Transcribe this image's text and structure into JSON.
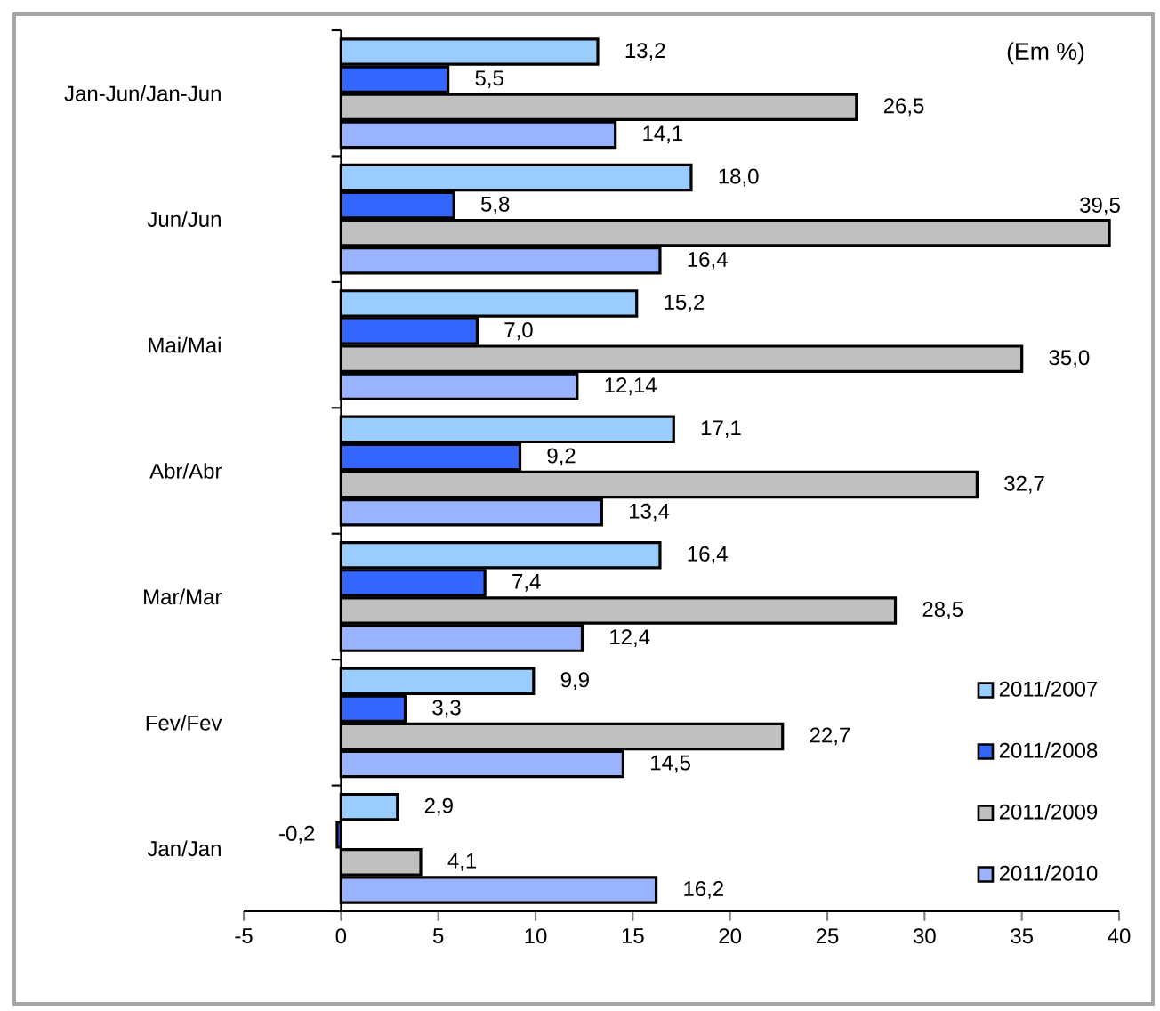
{
  "chart_data": {
    "type": "bar",
    "orientation": "horizontal",
    "categories": [
      "Jan-Jun/Jan-Jun",
      "Jun/Jun",
      "Mai/Mai",
      "Abr/Abr",
      "Mar/Mar",
      "Fev/Fev",
      "Jan/Jan"
    ],
    "series": [
      {
        "name": "2011/2007",
        "color": "#99ccff",
        "values": [
          13.2,
          18.0,
          15.2,
          17.1,
          16.4,
          9.9,
          2.9
        ],
        "value_labels": [
          "13,2",
          "18,0",
          "15,2",
          "17,1",
          "16,4",
          "9,9",
          "2,9"
        ]
      },
      {
        "name": "2011/2008",
        "color": "#3366ff",
        "values": [
          5.5,
          5.8,
          7.0,
          9.2,
          7.4,
          3.3,
          -0.2
        ],
        "value_labels": [
          "5,5",
          "5,8",
          "7,0",
          "9,2",
          "7,4",
          "3,3",
          "-0,2"
        ]
      },
      {
        "name": "2011/2009",
        "color": "#c0c0c0",
        "values": [
          26.5,
          39.5,
          35.0,
          32.7,
          28.5,
          22.7,
          4.1
        ],
        "value_labels": [
          "26,5",
          "39,5",
          "35,0",
          "32,7",
          "28,5",
          "22,7",
          "4,1"
        ]
      },
      {
        "name": "2011/2010",
        "color": "#99b3ff",
        "values": [
          14.1,
          16.4,
          12.14,
          13.4,
          12.4,
          14.5,
          16.2
        ],
        "value_labels": [
          "14,1",
          "16,4",
          "12,14",
          "13,4",
          "12,4",
          "14,5",
          "16,2"
        ]
      }
    ],
    "xlim": [
      -5,
      40
    ],
    "xticks": [
      -5,
      0,
      5,
      10,
      15,
      20,
      25,
      30,
      35,
      40
    ],
    "annotations": [
      "(Em %)"
    ],
    "legend": "bottom right"
  }
}
